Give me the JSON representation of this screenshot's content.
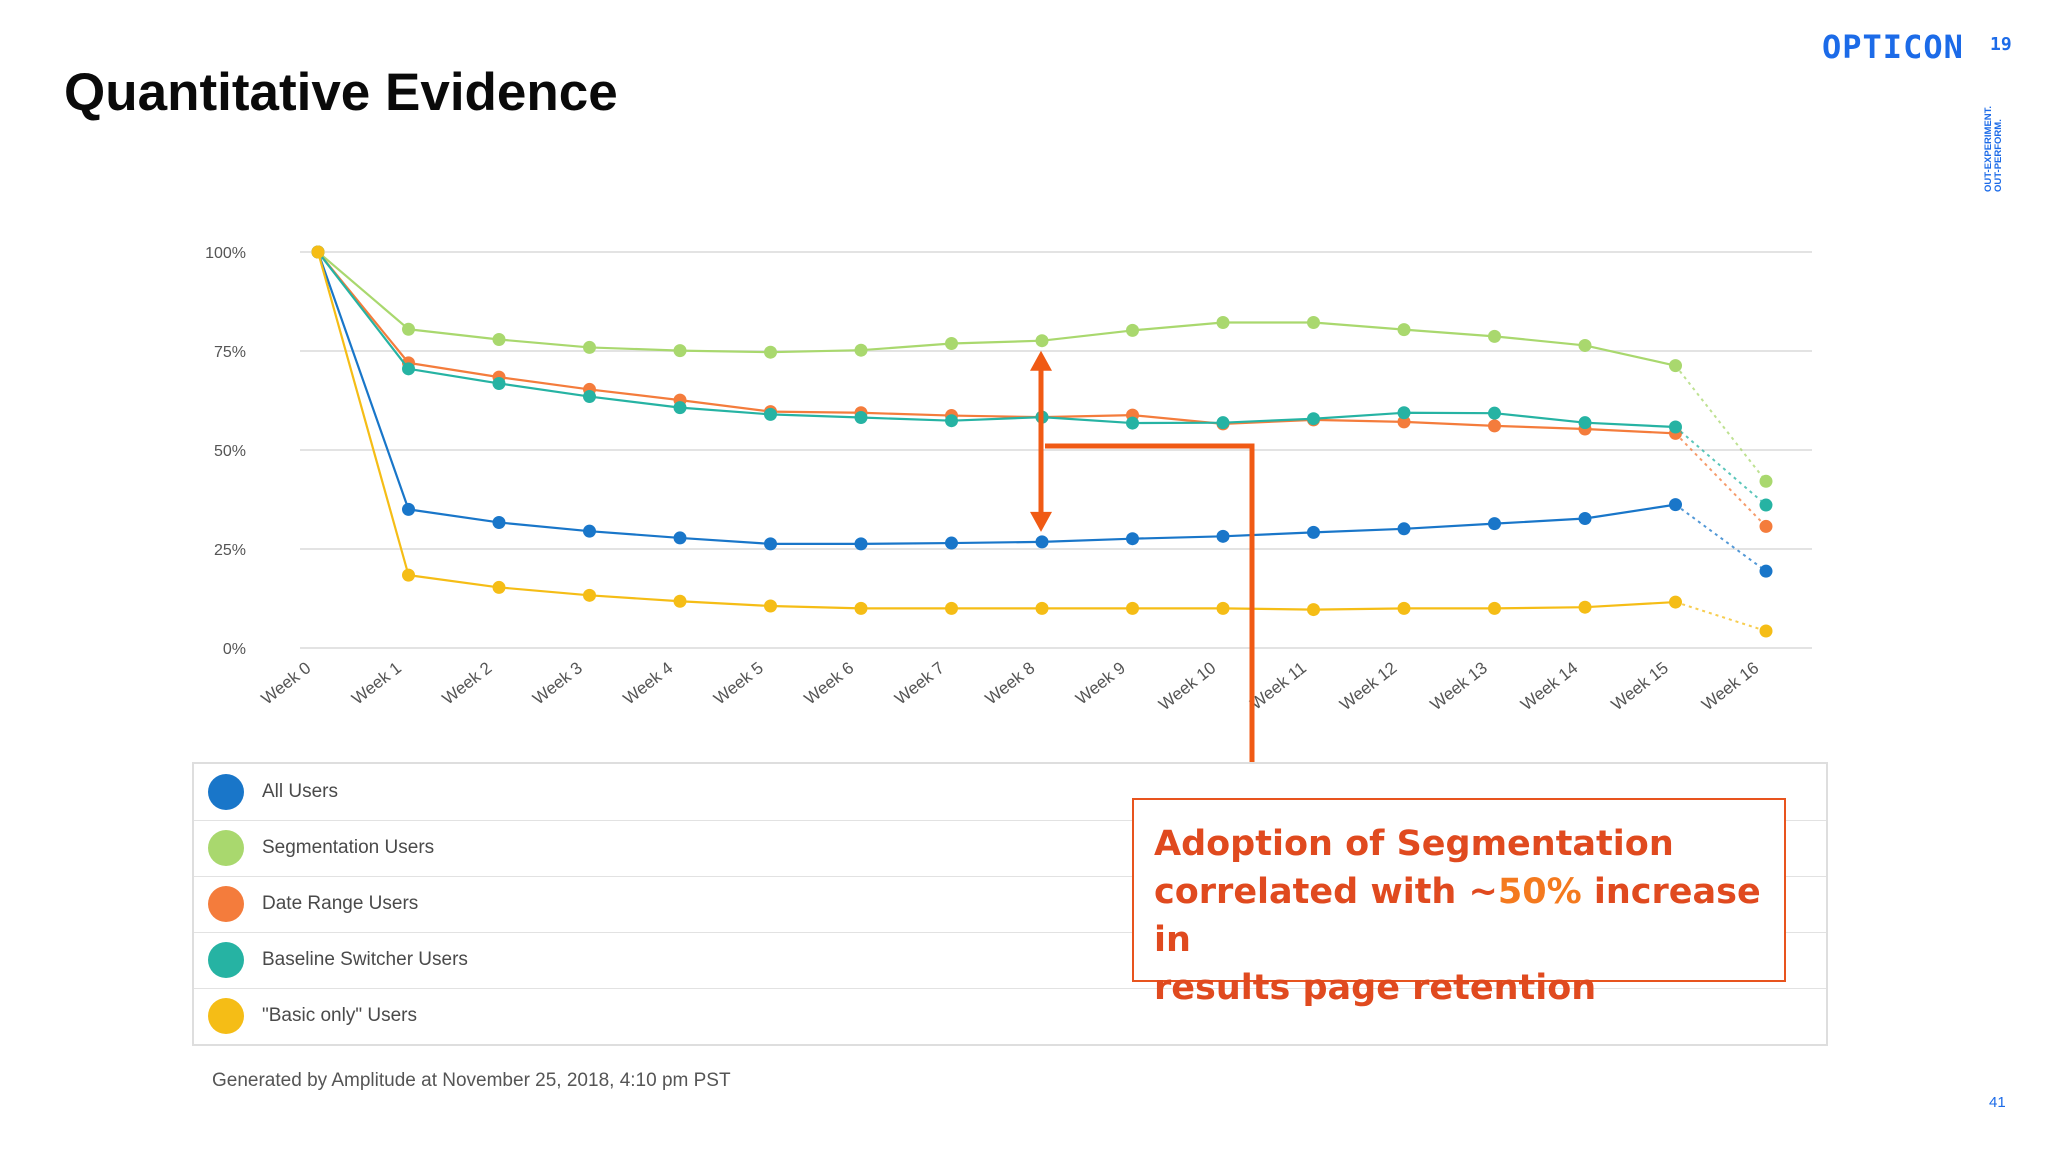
{
  "slide": {
    "title": "Quantitative Evidence",
    "page_number": "41"
  },
  "logo": {
    "wordmark": "OPTICON",
    "superscript": "19",
    "tagline": "OUT-EXPERIMENT.\nOUT-PERFORM.",
    "color": "#1c6be8"
  },
  "annotation": {
    "line1": "Adoption of Segmentation",
    "line2_prefix": "correlated with ~",
    "line2_pct": "50%",
    "line2_suffix": " increase in",
    "line3": "results page retention",
    "color": "#e04a1f",
    "arrow_color": "#f05a14"
  },
  "footer": {
    "generated": "Generated by Amplitude at November 25, 2018, 4:10 pm PST"
  },
  "chart_data": {
    "type": "line",
    "title": "",
    "xlabel": "",
    "ylabel": "",
    "ylim": [
      0,
      100
    ],
    "y_ticks": [
      "0%",
      "25%",
      "50%",
      "75%",
      "100%"
    ],
    "y_tick_values": [
      0,
      25,
      50,
      75,
      100
    ],
    "grid": true,
    "legend_position": "bottom",
    "categories": [
      "Week 0",
      "Week 1",
      "Week 2",
      "Week 3",
      "Week 4",
      "Week 5",
      "Week 6",
      "Week 7",
      "Week 8",
      "Week 9",
      "Week 10",
      "Week 11",
      "Week 12",
      "Week 13",
      "Week 14",
      "Week 15",
      "Week 16"
    ],
    "series": [
      {
        "name": "All Users",
        "color": "#1976c9",
        "values": [
          100,
          35,
          31.7,
          29.5,
          27.8,
          26.3,
          26.3,
          26.5,
          26.8,
          27.6,
          28.2,
          29.2,
          30.1,
          31.4,
          32.7,
          36.2,
          19.4
        ]
      },
      {
        "name": "Segmentation Users",
        "color": "#a9d86e",
        "values": [
          100,
          80.5,
          77.9,
          75.9,
          75.1,
          74.7,
          75.2,
          76.9,
          77.6,
          80.2,
          82.2,
          82.2,
          80.4,
          78.7,
          76.4,
          71.3,
          42.1
        ]
      },
      {
        "name": "Date Range Users",
        "color": "#f47c3c",
        "values": [
          100,
          72,
          68.4,
          65.3,
          62.6,
          59.7,
          59.4,
          58.7,
          58.3,
          58.8,
          56.6,
          57.6,
          57.1,
          56.1,
          55.3,
          54.2,
          30.7
        ]
      },
      {
        "name": "Baseline Switcher Users",
        "color": "#26b3a3",
        "values": [
          100,
          70.5,
          66.8,
          63.5,
          60.7,
          59.0,
          58.2,
          57.4,
          58.3,
          56.8,
          56.9,
          57.9,
          59.4,
          59.3,
          56.9,
          55.8,
          36.1
        ]
      },
      {
        "name": "\"Basic only\" Users",
        "color": "#f5bd16",
        "values": [
          100,
          18.4,
          15.3,
          13.3,
          11.8,
          10.6,
          10.0,
          10.0,
          10.0,
          10.0,
          10.0,
          9.7,
          10.0,
          10.0,
          10.3,
          11.6,
          4.3
        ]
      }
    ]
  }
}
